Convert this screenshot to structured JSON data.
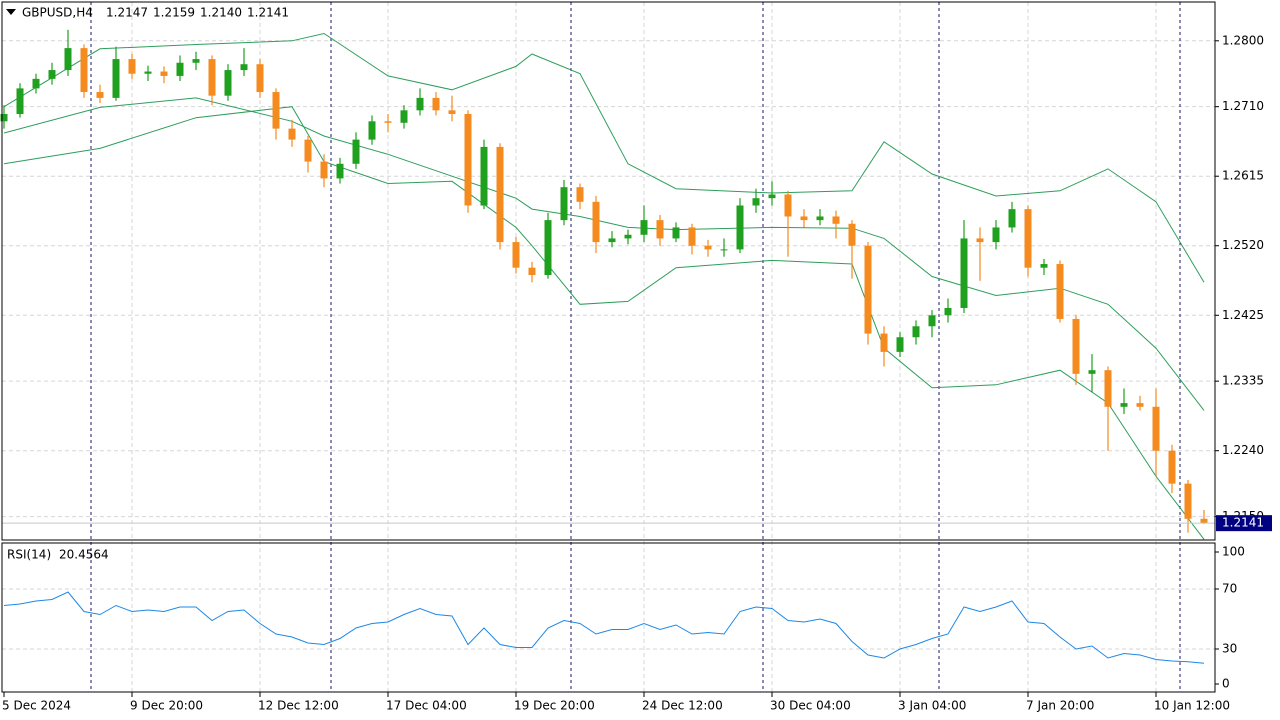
{
  "chart_data": [
    {
      "type": "candlestick",
      "title": "GBPUSD,H4",
      "header_values": [
        "1.2147",
        "1.2159",
        "1.2140",
        "1.2141"
      ],
      "categories": [
        "5 Dec 2024",
        null,
        null,
        null,
        null,
        null,
        null,
        null,
        "9 Dec 20:00",
        null,
        null,
        null,
        null,
        null,
        null,
        null,
        "12 Dec 12:00",
        null,
        null,
        null,
        null,
        null,
        null,
        null,
        "17 Dec 04:00",
        null,
        null,
        null,
        null,
        null,
        null,
        null,
        "19 Dec 20:00",
        null,
        null,
        null,
        null,
        null,
        null,
        null,
        "24 Dec 12:00",
        null,
        null,
        null,
        null,
        null,
        null,
        null,
        "30 Dec 04:00",
        null,
        null,
        null,
        null,
        null,
        null,
        null,
        "3 Jan 04:00",
        null,
        null,
        null,
        null,
        null,
        null,
        null,
        "7 Jan 20:00",
        null,
        null,
        null,
        null,
        null,
        null,
        null,
        "10 Jan 12:00",
        null,
        null,
        null
      ],
      "ohlc": [
        [
          1.269,
          1.2712,
          1.268,
          1.27
        ],
        [
          1.27,
          1.2742,
          1.2695,
          1.2735
        ],
        [
          1.2735,
          1.2755,
          1.2728,
          1.2748
        ],
        [
          1.2748,
          1.277,
          1.274,
          1.276
        ],
        [
          1.276,
          1.2815,
          1.2752,
          1.279
        ],
        [
          1.279,
          1.2795,
          1.2722,
          1.273
        ],
        [
          1.273,
          1.274,
          1.2715,
          1.2722
        ],
        [
          1.2722,
          1.2792,
          1.2718,
          1.2775
        ],
        [
          1.2775,
          1.2782,
          1.2748,
          1.2755
        ],
        [
          1.2755,
          1.2766,
          1.2745,
          1.2758
        ],
        [
          1.2758,
          1.2765,
          1.2742,
          1.2752
        ],
        [
          1.2752,
          1.278,
          1.2745,
          1.277
        ],
        [
          1.277,
          1.2785,
          1.276,
          1.2775
        ],
        [
          1.2775,
          1.278,
          1.2712,
          1.2725
        ],
        [
          1.2725,
          1.2768,
          1.2718,
          1.276
        ],
        [
          1.276,
          1.279,
          1.2752,
          1.2768
        ],
        [
          1.2768,
          1.2775,
          1.2722,
          1.273
        ],
        [
          1.273,
          1.2735,
          1.2665,
          1.268
        ],
        [
          1.268,
          1.2692,
          1.2655,
          1.2665
        ],
        [
          1.2665,
          1.267,
          1.262,
          1.2635
        ],
        [
          1.2635,
          1.2645,
          1.26,
          1.2612
        ],
        [
          1.2612,
          1.264,
          1.2605,
          1.2632
        ],
        [
          1.2632,
          1.2675,
          1.2625,
          1.2665
        ],
        [
          1.2665,
          1.2698,
          1.2658,
          1.269
        ],
        [
          1.269,
          1.27,
          1.2675,
          1.2688
        ],
        [
          1.2688,
          1.2712,
          1.268,
          1.2705
        ],
        [
          1.2705,
          1.2735,
          1.2698,
          1.2722
        ],
        [
          1.2722,
          1.273,
          1.2698,
          1.2705
        ],
        [
          1.2705,
          1.2725,
          1.269,
          1.27
        ],
        [
          1.27,
          1.2705,
          1.2565,
          1.2575
        ],
        [
          1.2575,
          1.2665,
          1.257,
          1.2655
        ],
        [
          1.2655,
          1.266,
          1.2515,
          1.2525
        ],
        [
          1.2525,
          1.2532,
          1.2482,
          1.249
        ],
        [
          1.249,
          1.2498,
          1.247,
          1.248
        ],
        [
          1.248,
          1.2565,
          1.2475,
          1.2555
        ],
        [
          1.2555,
          1.261,
          1.2548,
          1.26
        ],
        [
          1.26,
          1.2605,
          1.257,
          1.258
        ],
        [
          1.258,
          1.2588,
          1.251,
          1.2525
        ],
        [
          1.2525,
          1.254,
          1.2518,
          1.253
        ],
        [
          1.253,
          1.2542,
          1.2522,
          1.2535
        ],
        [
          1.2535,
          1.2575,
          1.2525,
          1.2555
        ],
        [
          1.2555,
          1.2562,
          1.252,
          1.253
        ],
        [
          1.253,
          1.2552,
          1.2525,
          1.2545
        ],
        [
          1.2545,
          1.255,
          1.2508,
          1.252
        ],
        [
          1.252,
          1.2528,
          1.2505,
          1.2515
        ],
        [
          1.2515,
          1.253,
          1.2505,
          1.2515
        ],
        [
          1.2515,
          1.2585,
          1.251,
          1.2575
        ],
        [
          1.2575,
          1.2598,
          1.2565,
          1.2585
        ],
        [
          1.2585,
          1.2608,
          1.2575,
          1.259
        ],
        [
          1.259,
          1.2595,
          1.2505,
          1.256
        ],
        [
          1.256,
          1.257,
          1.2545,
          1.2555
        ],
        [
          1.2555,
          1.257,
          1.2548,
          1.256
        ],
        [
          1.256,
          1.2568,
          1.253,
          1.255
        ],
        [
          1.255,
          1.2555,
          1.2475,
          1.252
        ],
        [
          1.252,
          1.2525,
          1.2385,
          1.24
        ],
        [
          1.24,
          1.241,
          1.2355,
          1.2375
        ],
        [
          1.2375,
          1.2402,
          1.2368,
          1.2395
        ],
        [
          1.2395,
          1.2418,
          1.2385,
          1.241
        ],
        [
          1.241,
          1.2432,
          1.2395,
          1.2425
        ],
        [
          1.2425,
          1.2448,
          1.2415,
          1.2435
        ],
        [
          1.2435,
          1.2555,
          1.2428,
          1.253
        ],
        [
          1.253,
          1.2545,
          1.2472,
          1.2525
        ],
        [
          1.2525,
          1.2555,
          1.2515,
          1.2545
        ],
        [
          1.2545,
          1.258,
          1.2538,
          1.257
        ],
        [
          1.257,
          1.2575,
          1.2478,
          1.249
        ],
        [
          1.249,
          1.2502,
          1.248,
          1.2495
        ],
        [
          1.2495,
          1.25,
          1.2415,
          1.242
        ],
        [
          1.242,
          1.2425,
          1.233,
          1.2345
        ],
        [
          1.2345,
          1.2372,
          1.232,
          1.235
        ],
        [
          1.235,
          1.2355,
          1.224,
          1.23
        ],
        [
          1.23,
          1.2325,
          1.229,
          1.2305
        ],
        [
          1.2305,
          1.2315,
          1.2295,
          1.23
        ],
        [
          1.23,
          1.2325,
          1.2205,
          1.224
        ],
        [
          1.224,
          1.2248,
          1.2182,
          1.2195
        ],
        [
          1.2195,
          1.22,
          1.2128,
          1.2147
        ],
        [
          1.2147,
          1.2159,
          1.214,
          1.2141
        ]
      ],
      "colors": {
        "up": "#1fa01f",
        "down": "#f58a1f"
      },
      "bands": {
        "color": "#2e9e5b",
        "x": [
          0,
          6,
          12,
          18,
          20,
          24,
          28,
          32,
          33,
          36,
          39,
          42,
          48,
          53,
          55,
          58,
          62,
          66,
          69,
          72,
          75
        ],
        "upper": [
          1.271,
          1.2789,
          1.2795,
          1.28,
          1.281,
          1.2752,
          1.2733,
          1.2765,
          1.2782,
          1.2755,
          1.2632,
          1.2598,
          1.2592,
          1.2595,
          1.2662,
          1.2618,
          1.2588,
          1.2595,
          1.2625,
          1.258,
          1.247
        ],
        "middle": [
          1.2674,
          1.2709,
          1.2722,
          1.269,
          1.267,
          1.2645,
          1.2615,
          1.2585,
          1.257,
          1.256,
          1.2545,
          1.2542,
          1.2545,
          1.2544,
          1.253,
          1.2478,
          1.2452,
          1.2462,
          1.244,
          1.238,
          1.2295
        ],
        "lower": [
          1.2632,
          1.2653,
          1.2695,
          1.271,
          1.2635,
          1.2605,
          1.2608,
          1.2545,
          1.252,
          1.244,
          1.2444,
          1.249,
          1.25,
          1.2495,
          1.238,
          1.2326,
          1.233,
          1.235,
          1.2305,
          1.2205,
          1.2119
        ]
      },
      "ylim": [
        1.2118,
        1.2853
      ],
      "yticks": [
        {
          "value": 1.28,
          "label": "1.2800"
        },
        {
          "value": 1.271,
          "label": "1.2710"
        },
        1.2615,
        {
          "value": 1.252,
          "label": "1.2520"
        },
        1.2425,
        1.2335,
        {
          "value": 1.224,
          "label": "1.2240"
        },
        {
          "value": 1.215,
          "label": "1.2150"
        }
      ],
      "grid": true
    },
    {
      "type": "line",
      "title": "RSI(14)",
      "color": "#1e88e5",
      "values": [
        59,
        60,
        62,
        63,
        68,
        55,
        53,
        59,
        55,
        56,
        55,
        58,
        58,
        49,
        55,
        56,
        47,
        40,
        38,
        34,
        33,
        37,
        44,
        47,
        48,
        53,
        57,
        53,
        52,
        33,
        44,
        33,
        31,
        31,
        44,
        49,
        47,
        40,
        43,
        43,
        47,
        43,
        46,
        40,
        41,
        40,
        55,
        58,
        57,
        49,
        48,
        50,
        47,
        35,
        26,
        24,
        30,
        33,
        37,
        40,
        58,
        55,
        58,
        62,
        48,
        47,
        38,
        30,
        32,
        24,
        27,
        26,
        23,
        22,
        21.5,
        20.4564
      ],
      "ylim": [
        0,
        100
      ],
      "yticks": [
        0,
        30,
        70,
        100
      ],
      "grid": true
    }
  ]
}
